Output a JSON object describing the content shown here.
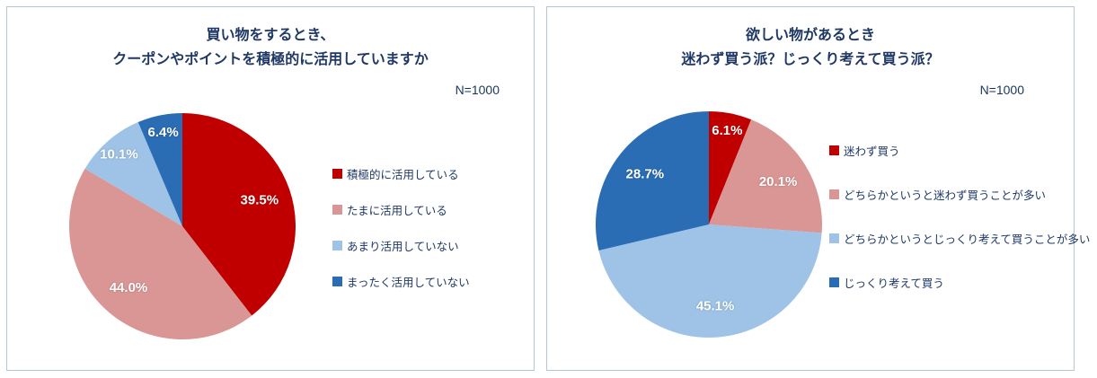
{
  "chart_data": [
    {
      "type": "pie",
      "title": "買い物をするとき、 クーポンやポイントを積極的に活用していますか",
      "title_lines": [
        "買い物をするとき、",
        "クーポンやポイントを積極的に活用していますか"
      ],
      "n_label": "N=1000",
      "categories": [
        "積極的に活用している",
        "たまに活用している",
        "あまり活用していない",
        "まったく活用していない"
      ],
      "values": [
        39.5,
        44.0,
        10.1,
        6.4
      ],
      "data_labels": [
        "39.5%",
        "44.0%",
        "10.1%",
        "6.4%"
      ],
      "colors": [
        "#C00000",
        "#D99694",
        "#9EC3E7",
        "#2A6DB5"
      ],
      "label_color": "#FFFFFF",
      "title_color": "#1F3864",
      "legend_position": "right",
      "start_angle_deg": 0,
      "direction": "clockwise"
    },
    {
      "type": "pie",
      "title": "欲しい物があるとき 迷わず買う派？じっくり考えて買う派？",
      "title_lines": [
        "欲しい物があるとき",
        "迷わず買う派？じっくり考えて買う派？"
      ],
      "n_label": "N=1000",
      "categories": [
        "迷わず買う",
        "どちらかというと迷わず買うことが多い",
        "どちらかというとじっくり考えて買うことが多い",
        "じっくり考えて買う"
      ],
      "values": [
        6.1,
        20.1,
        45.1,
        28.7
      ],
      "data_labels": [
        "6.1%",
        "20.1%",
        "45.1%",
        "28.7%"
      ],
      "colors": [
        "#C00000",
        "#D99694",
        "#9EC3E7",
        "#2A6DB5"
      ],
      "label_color": "#FFFFFF",
      "title_color": "#1F3864",
      "legend_position": "right",
      "start_angle_deg": 0,
      "direction": "clockwise"
    }
  ]
}
